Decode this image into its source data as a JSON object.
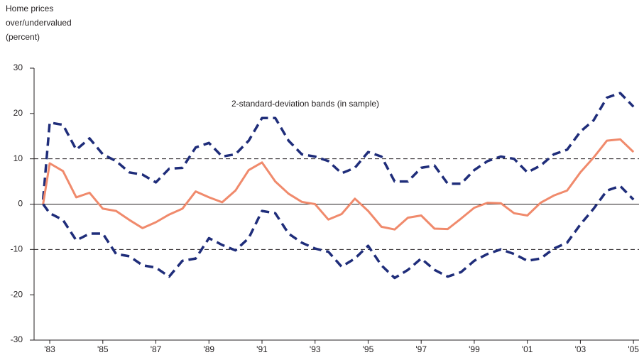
{
  "chart_data": {
    "type": "line",
    "y_label": [
      "Home prices",
      "over/undervalued",
      "(percent)"
    ],
    "annotation": "2-standard-deviation bands (in sample)",
    "x": [
      1982.75,
      1983,
      1983.5,
      1984,
      1984.5,
      1985,
      1985.5,
      1986,
      1986.5,
      1987,
      1987.5,
      1988,
      1988.5,
      1989,
      1989.5,
      1990,
      1990.5,
      1991,
      1991.5,
      1992,
      1992.5,
      1993,
      1993.5,
      1994,
      1994.5,
      1995,
      1995.5,
      1996,
      1996.5,
      1997,
      1997.5,
      1998,
      1998.5,
      1999,
      1999.5,
      2000,
      2000.5,
      2001,
      2001.5,
      2002,
      2002.5,
      2003,
      2003.5,
      2004,
      2004.5,
      2005
    ],
    "series": [
      {
        "color": "#1f2d7a",
        "dashed": true,
        "values": [
          1,
          18,
          17.5,
          12,
          14.5,
          11,
          9.5,
          7,
          6.5,
          4.8,
          7.8,
          8,
          12.5,
          13.5,
          10.5,
          11,
          14,
          19,
          19,
          14,
          11,
          10.5,
          9.5,
          6.8,
          8,
          11.5,
          10.5,
          5,
          5,
          8,
          8.5,
          4.5,
          4.5,
          7.5,
          9.5,
          10.5,
          10,
          7,
          8.5,
          11,
          12,
          16,
          18.5,
          23.5,
          24.5,
          21.5
        ]
      },
      {
        "color": "#f08a6c",
        "dashed": false,
        "values": [
          0,
          9,
          7.3,
          1.5,
          2.5,
          -1,
          -1.5,
          -3.5,
          -5.3,
          -4,
          -2.3,
          -1,
          2.8,
          1.5,
          0.4,
          3,
          7.5,
          9.2,
          5,
          2.3,
          0.5,
          0,
          -3.4,
          -2.2,
          1.2,
          -1.5,
          -5,
          -5.6,
          -3,
          -2.5,
          -5.4,
          -5.5,
          -3.2,
          -0.8,
          0.3,
          0.2,
          -2,
          -2.5,
          0.3,
          1.9,
          3,
          7,
          10.3,
          14,
          14.3,
          11.5
        ]
      },
      {
        "color": "#1f2d7a",
        "dashed": true,
        "values": [
          0,
          -2,
          -3.5,
          -8,
          -6.5,
          -6.5,
          -11,
          -11.5,
          -13.5,
          -14,
          -16,
          -12.5,
          -12,
          -7.5,
          -9,
          -10.2,
          -7.5,
          -1.5,
          -2,
          -6.5,
          -8.5,
          -9.8,
          -10.5,
          -13.8,
          -12,
          -9.2,
          -13.5,
          -16.3,
          -14.5,
          -12,
          -14.5,
          -16,
          -15,
          -12.5,
          -11,
          -10,
          -11,
          -12.5,
          -12,
          -9.8,
          -8.5,
          -4.5,
          -1,
          3,
          4,
          1
        ]
      }
    ],
    "xlim": [
      1982.41,
      2005.21
    ],
    "xticks": [
      {
        "value": 1983,
        "label": "'83"
      },
      {
        "value": 1985,
        "label": "'85"
      },
      {
        "value": 1987,
        "label": "'87"
      },
      {
        "value": 1989,
        "label": "'89"
      },
      {
        "value": 1991,
        "label": "'91"
      },
      {
        "value": 1993,
        "label": "'93"
      },
      {
        "value": 1995,
        "label": "'95"
      },
      {
        "value": 1997,
        "label": "'97"
      },
      {
        "value": 1999,
        "label": "'99"
      },
      {
        "value": 2001,
        "label": "'01"
      },
      {
        "value": 2003,
        "label": "'03"
      },
      {
        "value": 2005,
        "label": "'05"
      }
    ],
    "ylim": [
      -30,
      30
    ],
    "yticks": [
      -30,
      -20,
      -10,
      0,
      10,
      20,
      30
    ],
    "hlines": [
      {
        "value": 10,
        "dashed": true
      },
      {
        "value": 0,
        "dashed": false
      },
      {
        "value": -10,
        "dashed": true
      }
    ]
  }
}
